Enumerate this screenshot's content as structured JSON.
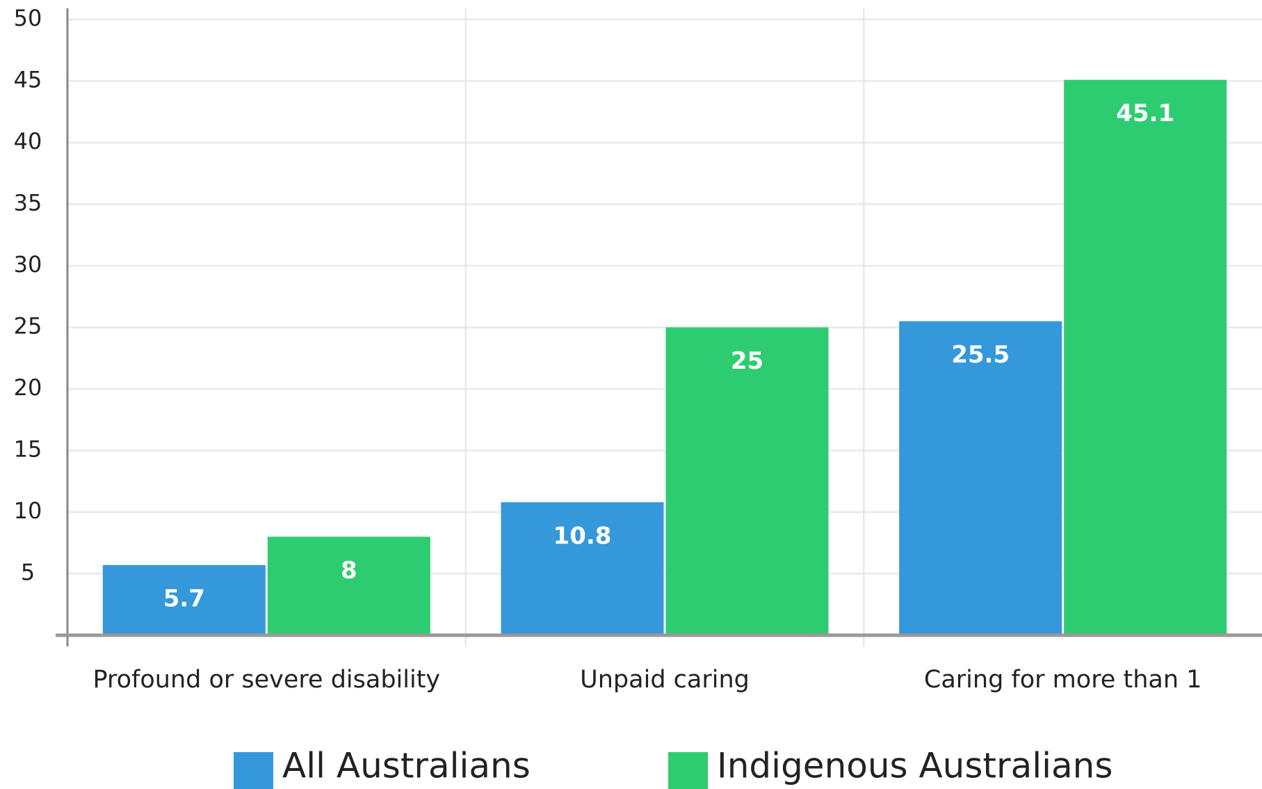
{
  "chart_data": {
    "type": "bar",
    "categories": [
      "Profound or severe disability",
      "Unpaid caring",
      "Caring for more than 1"
    ],
    "series": [
      {
        "name": "All Australians",
        "color": "#3498db",
        "values": [
          5.7,
          10.8,
          25.5
        ]
      },
      {
        "name": "Indigenous Australians",
        "color": "#2ecc71",
        "values": [
          8,
          25,
          45.1
        ]
      }
    ],
    "ylim": [
      0,
      50
    ],
    "yticks": [
      5,
      10,
      15,
      20,
      25,
      30,
      35,
      40,
      45,
      50
    ],
    "grid": true
  }
}
